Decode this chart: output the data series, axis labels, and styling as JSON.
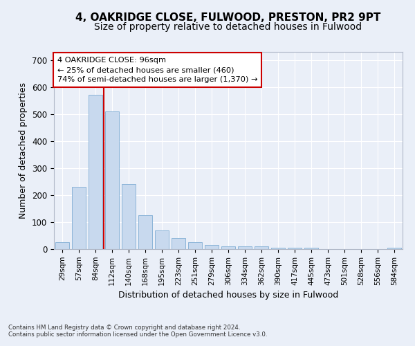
{
  "title1": "4, OAKRIDGE CLOSE, FULWOOD, PRESTON, PR2 9PT",
  "title2": "Size of property relative to detached houses in Fulwood",
  "xlabel": "Distribution of detached houses by size in Fulwood",
  "ylabel": "Number of detached properties",
  "categories": [
    "29sqm",
    "57sqm",
    "84sqm",
    "112sqm",
    "140sqm",
    "168sqm",
    "195sqm",
    "223sqm",
    "251sqm",
    "279sqm",
    "306sqm",
    "334sqm",
    "362sqm",
    "390sqm",
    "417sqm",
    "445sqm",
    "473sqm",
    "501sqm",
    "528sqm",
    "556sqm",
    "584sqm"
  ],
  "values": [
    25,
    230,
    570,
    510,
    240,
    125,
    70,
    40,
    25,
    15,
    10,
    10,
    10,
    5,
    5,
    5,
    0,
    0,
    0,
    0,
    5
  ],
  "bar_color": "#c8d9ee",
  "bar_edge_color": "#8bb4d8",
  "vline_color": "#cc0000",
  "annotation_text": "4 OAKRIDGE CLOSE: 96sqm\n← 25% of detached houses are smaller (460)\n74% of semi-detached houses are larger (1,370) →",
  "annotation_box_color": "#ffffff",
  "annotation_box_edge_color": "#cc0000",
  "ylim": [
    0,
    730
  ],
  "yticks": [
    0,
    100,
    200,
    300,
    400,
    500,
    600,
    700
  ],
  "title1_fontsize": 11,
  "title2_fontsize": 10,
  "xlabel_fontsize": 9,
  "ylabel_fontsize": 9,
  "footnote1": "Contains HM Land Registry data © Crown copyright and database right 2024.",
  "footnote2": "Contains public sector information licensed under the Open Government Licence v3.0.",
  "bg_color": "#eaeff8",
  "grid_color": "#ffffff"
}
